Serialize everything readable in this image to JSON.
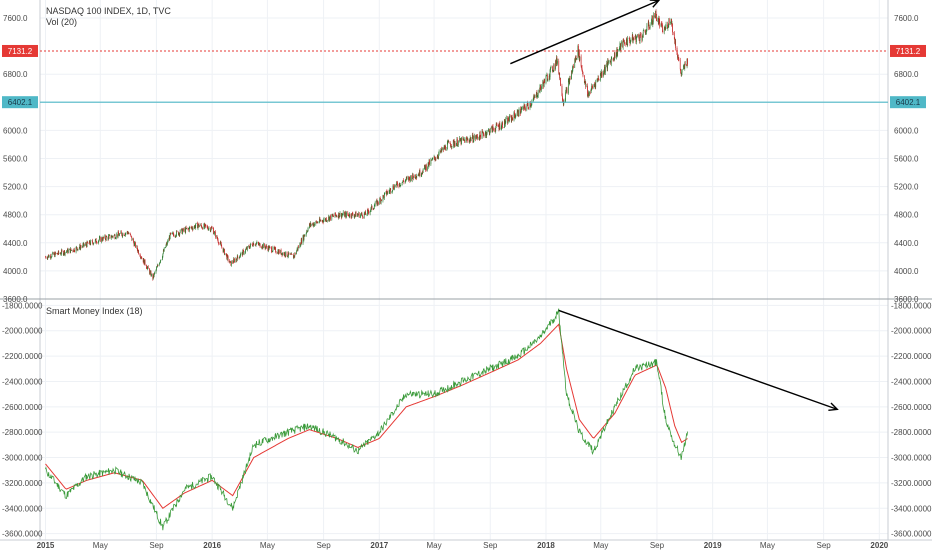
{
  "colors": {
    "bull": "#26a69a",
    "bear": "#ef5350",
    "candle_up": "#2e7d32",
    "candle_down": "#c62828",
    "smi": "#3a9a3a",
    "smi_ma": "#e53935",
    "resistance": "#e53935",
    "support": "#4fb8c7",
    "grid": "#eef1f5",
    "axis": "#c9cdd3",
    "arrow": "#000000"
  },
  "chart_data": [
    {
      "type": "candlestick",
      "title": "NASDAQ 100 INDEX, 1D, TVC",
      "subtitle": "Vol (20)",
      "ylim": [
        3600,
        7800
      ],
      "yticks": [
        "7600.0",
        "6800.0",
        "6400.0",
        "6000.0",
        "5600.0",
        "5200.0",
        "4800.0",
        "4400.0",
        "4000.0",
        "3600.0"
      ],
      "ytick_values": [
        7600,
        6800,
        6400,
        6000,
        5600,
        5200,
        4800,
        4400,
        4000,
        3600
      ],
      "x": [
        "2015-01-01",
        "2015-03-01",
        "2015-05-01",
        "2015-07-01",
        "2015-08-24",
        "2015-10-01",
        "2015-12-01",
        "2016-01-01",
        "2016-02-10",
        "2016-04-01",
        "2016-06-27",
        "2016-08-01",
        "2016-10-01",
        "2016-12-01",
        "2017-02-01",
        "2017-04-01",
        "2017-06-01",
        "2017-08-01",
        "2017-10-01",
        "2017-12-01",
        "2018-01-26",
        "2018-02-08",
        "2018-03-12",
        "2018-04-02",
        "2018-05-01",
        "2018-06-20",
        "2018-08-01",
        "2018-08-29",
        "2018-09-15",
        "2018-10-01",
        "2018-10-24",
        "2018-11-07"
      ],
      "values": [
        4200,
        4300,
        4450,
        4550,
        3900,
        4500,
        4650,
        4600,
        4100,
        4400,
        4200,
        4650,
        4800,
        4800,
        5200,
        5400,
        5800,
        5900,
        6100,
        6400,
        7000,
        6400,
        7150,
        6500,
        6800,
        7250,
        7350,
        7650,
        7400,
        7600,
        6800,
        7000
      ],
      "series": [
        {
          "name": "Resistance",
          "value": 7131.2,
          "label": "7131.2"
        },
        {
          "name": "Support",
          "value": 6402.1,
          "label": "6402.1"
        }
      ],
      "annotations": [
        {
          "type": "arrow",
          "from": [
            "2017-10-15",
            6950
          ],
          "to": [
            "2018-09-05",
            7850
          ]
        }
      ]
    },
    {
      "type": "line",
      "title": "Smart Money Index (18)",
      "ylim": [
        -3650,
        -1750
      ],
      "yticks": [
        "-1800.0000",
        "-2000.0000",
        "-2200.0000",
        "-2400.0000",
        "-2600.0000",
        "-2800.0000",
        "-3000.0000",
        "-3200.0000",
        "-3400.0000",
        "-3600.0000"
      ],
      "ytick_values": [
        -1800,
        -2000,
        -2200,
        -2400,
        -2600,
        -2800,
        -3000,
        -3200,
        -3400,
        -3600
      ],
      "x": [
        "2015-01-01",
        "2015-02-15",
        "2015-04-01",
        "2015-06-01",
        "2015-08-01",
        "2015-09-15",
        "2015-11-01",
        "2016-01-01",
        "2016-02-15",
        "2016-04-01",
        "2016-06-15",
        "2016-08-01",
        "2016-10-01",
        "2016-11-15",
        "2017-01-01",
        "2017-03-01",
        "2017-05-01",
        "2017-07-01",
        "2017-09-01",
        "2017-11-01",
        "2017-12-20",
        "2018-01-29",
        "2018-02-15",
        "2018-03-15",
        "2018-04-15",
        "2018-06-01",
        "2018-07-15",
        "2018-09-01",
        "2018-09-20",
        "2018-10-10",
        "2018-10-25",
        "2018-11-07"
      ],
      "series": [
        {
          "name": "Smart Money Index",
          "values": [
            -3100,
            -3300,
            -3150,
            -3100,
            -3200,
            -3550,
            -3250,
            -3150,
            -3400,
            -2900,
            -2800,
            -2750,
            -2850,
            -2950,
            -2800,
            -2500,
            -2500,
            -2400,
            -2300,
            -2200,
            -2050,
            -1850,
            -2500,
            -2800,
            -2950,
            -2600,
            -2300,
            -2250,
            -2700,
            -2900,
            -3000,
            -2800
          ]
        },
        {
          "name": "MA",
          "values": [
            -3050,
            -3250,
            -3180,
            -3120,
            -3180,
            -3400,
            -3280,
            -3180,
            -3300,
            -3000,
            -2850,
            -2780,
            -2850,
            -2920,
            -2850,
            -2600,
            -2520,
            -2430,
            -2330,
            -2230,
            -2100,
            -1950,
            -2300,
            -2700,
            -2850,
            -2650,
            -2350,
            -2270,
            -2450,
            -2750,
            -2880,
            -2850
          ]
        }
      ],
      "annotations": [
        {
          "type": "arrow",
          "from": [
            "2018-01-29",
            -1840
          ],
          "to": [
            "2019-10-01",
            -2620
          ]
        }
      ]
    }
  ],
  "xaxis": {
    "labels": [
      {
        "text": "2015",
        "date": "2015-01-01",
        "bold": true
      },
      {
        "text": "May",
        "date": "2015-05-01",
        "bold": false
      },
      {
        "text": "Sep",
        "date": "2015-09-01",
        "bold": false
      },
      {
        "text": "2016",
        "date": "2016-01-01",
        "bold": true
      },
      {
        "text": "May",
        "date": "2016-05-01",
        "bold": false
      },
      {
        "text": "Sep",
        "date": "2016-09-01",
        "bold": false
      },
      {
        "text": "2017",
        "date": "2017-01-01",
        "bold": true
      },
      {
        "text": "May",
        "date": "2017-05-01",
        "bold": false
      },
      {
        "text": "Sep",
        "date": "2017-09-01",
        "bold": false
      },
      {
        "text": "2018",
        "date": "2018-01-01",
        "bold": true
      },
      {
        "text": "May",
        "date": "2018-05-01",
        "bold": false
      },
      {
        "text": "Sep",
        "date": "2018-09-01",
        "bold": false
      },
      {
        "text": "2019",
        "date": "2019-01-01",
        "bold": true
      },
      {
        "text": "May",
        "date": "2019-05-01",
        "bold": false
      },
      {
        "text": "Sep",
        "date": "2019-09-01",
        "bold": false
      },
      {
        "text": "2020",
        "date": "2020-01-01",
        "bold": true
      }
    ]
  }
}
